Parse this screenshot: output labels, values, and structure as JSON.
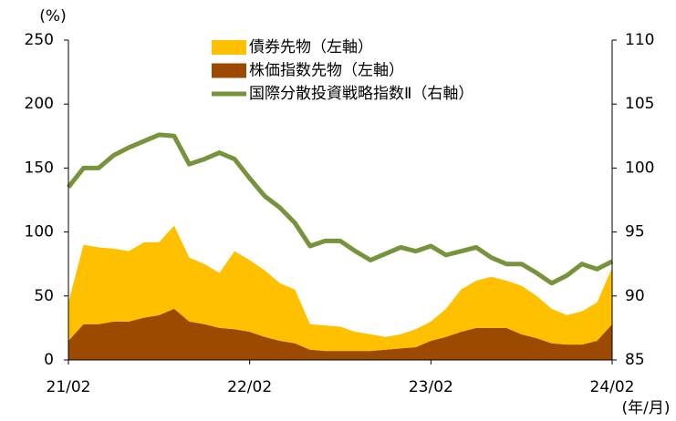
{
  "chart_data": {
    "type": "stacked_area_line",
    "y_label": "(%)",
    "x_label": "(年/月)",
    "x": [
      "21/02",
      null,
      null,
      null,
      null,
      null,
      null,
      null,
      null,
      null,
      null,
      null,
      "22/02",
      null,
      null,
      null,
      null,
      null,
      null,
      null,
      null,
      null,
      null,
      null,
      "23/02",
      null,
      null,
      null,
      null,
      null,
      null,
      null,
      null,
      null,
      null,
      null,
      "24/02"
    ],
    "series": [
      {
        "name": "債券先物（左軸）",
        "color": "#ffc000",
        "kind": "area",
        "values": [
          30,
          62,
          60,
          57,
          55,
          59,
          57,
          65,
          50,
          47,
          43,
          61,
          56,
          52,
          45,
          42,
          20,
          20,
          19,
          15,
          13,
          10,
          11,
          14,
          15,
          22,
          33,
          37,
          40,
          37,
          38,
          33,
          27,
          23,
          26,
          30,
          44
        ]
      },
      {
        "name": "株価指数先物（左軸）",
        "color": "#9c4a00",
        "kind": "area",
        "values": [
          15,
          28,
          28,
          30,
          30,
          33,
          35,
          40,
          30,
          28,
          25,
          24,
          22,
          18,
          15,
          13,
          8,
          7,
          7,
          7,
          7,
          8,
          9,
          10,
          15,
          18,
          22,
          25,
          25,
          25,
          20,
          17,
          13,
          12,
          12,
          15,
          28
        ]
      },
      {
        "name": "国際分散投資戦略指数Ⅱ（右軸）",
        "color": "#77933c",
        "kind": "line",
        "axis": "y2",
        "values": [
          98.5,
          100,
          100,
          101,
          101.6,
          102.1,
          102.6,
          102.5,
          100.3,
          100.7,
          101.2,
          100.7,
          99.2,
          97.8,
          96.9,
          95.7,
          93.9,
          94.3,
          94.3,
          93.5,
          92.8,
          93.3,
          93.8,
          93.5,
          93.9,
          93.2,
          93.5,
          93.8,
          93,
          92.5,
          92.5,
          91.8,
          91,
          91.6,
          92.5,
          92.1,
          92.7
        ]
      }
    ],
    "ylim": [
      0,
      250
    ],
    "yticks": [
      0,
      50,
      100,
      150,
      200,
      250
    ],
    "y2lim": [
      85,
      110
    ],
    "y2ticks": [
      85,
      90,
      95,
      100,
      105,
      110
    ],
    "legend": "top"
  }
}
